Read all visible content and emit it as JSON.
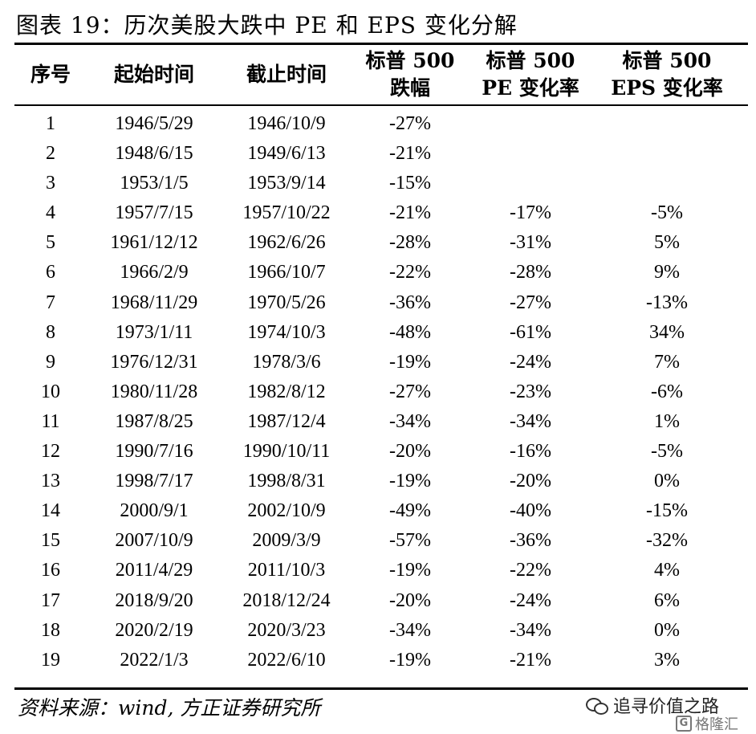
{
  "title": "图表 19：历次美股大跌中 PE 和 EPS 变化分解",
  "headers": [
    {
      "line1": "序号",
      "line2": ""
    },
    {
      "line1": "起始时间",
      "line2": ""
    },
    {
      "line1": "截止时间",
      "line2": ""
    },
    {
      "line1": "标普 500",
      "line2": "跌幅"
    },
    {
      "line1": "标普 500",
      "line2": "PE 变化率"
    },
    {
      "line1": "标普 500",
      "line2": "EPS 变化率"
    }
  ],
  "rows": [
    [
      "1",
      "1946/5/29",
      "1946/10/9",
      "-27%",
      "",
      ""
    ],
    [
      "2",
      "1948/6/15",
      "1949/6/13",
      "-21%",
      "",
      ""
    ],
    [
      "3",
      "1953/1/5",
      "1953/9/14",
      "-15%",
      "",
      ""
    ],
    [
      "4",
      "1957/7/15",
      "1957/10/22",
      "-21%",
      "-17%",
      "-5%"
    ],
    [
      "5",
      "1961/12/12",
      "1962/6/26",
      "-28%",
      "-31%",
      "5%"
    ],
    [
      "6",
      "1966/2/9",
      "1966/10/7",
      "-22%",
      "-28%",
      "9%"
    ],
    [
      "7",
      "1968/11/29",
      "1970/5/26",
      "-36%",
      "-27%",
      "-13%"
    ],
    [
      "8",
      "1973/1/11",
      "1974/10/3",
      "-48%",
      "-61%",
      "34%"
    ],
    [
      "9",
      "1976/12/31",
      "1978/3/6",
      "-19%",
      "-24%",
      "7%"
    ],
    [
      "10",
      "1980/11/28",
      "1982/8/12",
      "-27%",
      "-23%",
      "-6%"
    ],
    [
      "11",
      "1987/8/25",
      "1987/12/4",
      "-34%",
      "-34%",
      "1%"
    ],
    [
      "12",
      "1990/7/16",
      "1990/10/11",
      "-20%",
      "-16%",
      "-5%"
    ],
    [
      "13",
      "1998/7/17",
      "1998/8/31",
      "-19%",
      "-20%",
      "0%"
    ],
    [
      "14",
      "2000/9/1",
      "2002/10/9",
      "-49%",
      "-40%",
      "-15%"
    ],
    [
      "15",
      "2007/10/9",
      "2009/3/9",
      "-57%",
      "-36%",
      "-32%"
    ],
    [
      "16",
      "2011/4/29",
      "2011/10/3",
      "-19%",
      "-22%",
      "4%"
    ],
    [
      "17",
      "2018/9/20",
      "2018/12/24",
      "-20%",
      "-24%",
      "6%"
    ],
    [
      "18",
      "2020/2/19",
      "2020/3/23",
      "-34%",
      "-34%",
      "0%"
    ],
    [
      "19",
      "2022/1/3",
      "2022/6/10",
      "-19%",
      "-21%",
      "3%"
    ]
  ],
  "source": "资料来源：wind, 方正证券研究所",
  "watermark": {
    "account": "追寻价值之路",
    "logo_text": "格隆汇",
    "icon": "wechat-icon"
  }
}
